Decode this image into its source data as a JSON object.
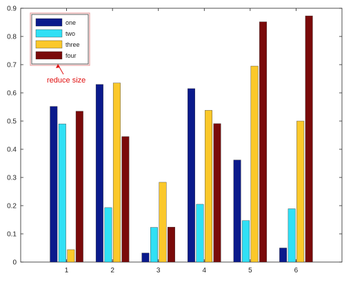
{
  "chart_data": {
    "type": "bar",
    "categories": [
      "1",
      "2",
      "3",
      "4",
      "5",
      "6"
    ],
    "series": [
      {
        "name": "one",
        "color": "#0a1a8c",
        "values": [
          0.552,
          0.63,
          0.032,
          0.615,
          0.362,
          0.05
        ]
      },
      {
        "name": "two",
        "color": "#30e0f5",
        "values": [
          0.49,
          0.193,
          0.123,
          0.205,
          0.147,
          0.189
        ]
      },
      {
        "name": "three",
        "color": "#fbc82a",
        "values": [
          0.044,
          0.635,
          0.283,
          0.538,
          0.695,
          0.5
        ]
      },
      {
        "name": "four",
        "color": "#7a0a0a",
        "values": [
          0.535,
          0.445,
          0.124,
          0.491,
          0.852,
          0.873
        ]
      }
    ],
    "ylim": [
      0,
      0.9
    ],
    "yticks": [
      0,
      0.1,
      0.2,
      0.3,
      0.4,
      0.5,
      0.6,
      0.7,
      0.8,
      0.9
    ],
    "ytick_labels": [
      "0",
      "0.1",
      "0.2",
      "0.3",
      "0.4",
      "0.5",
      "0.6",
      "0.7",
      "0.8",
      "0.9"
    ],
    "legend_position": "top-left",
    "annotation": {
      "text": "reduce size",
      "color": "#e01010"
    },
    "title": "",
    "xlabel": "",
    "ylabel": "",
    "grid": false
  }
}
